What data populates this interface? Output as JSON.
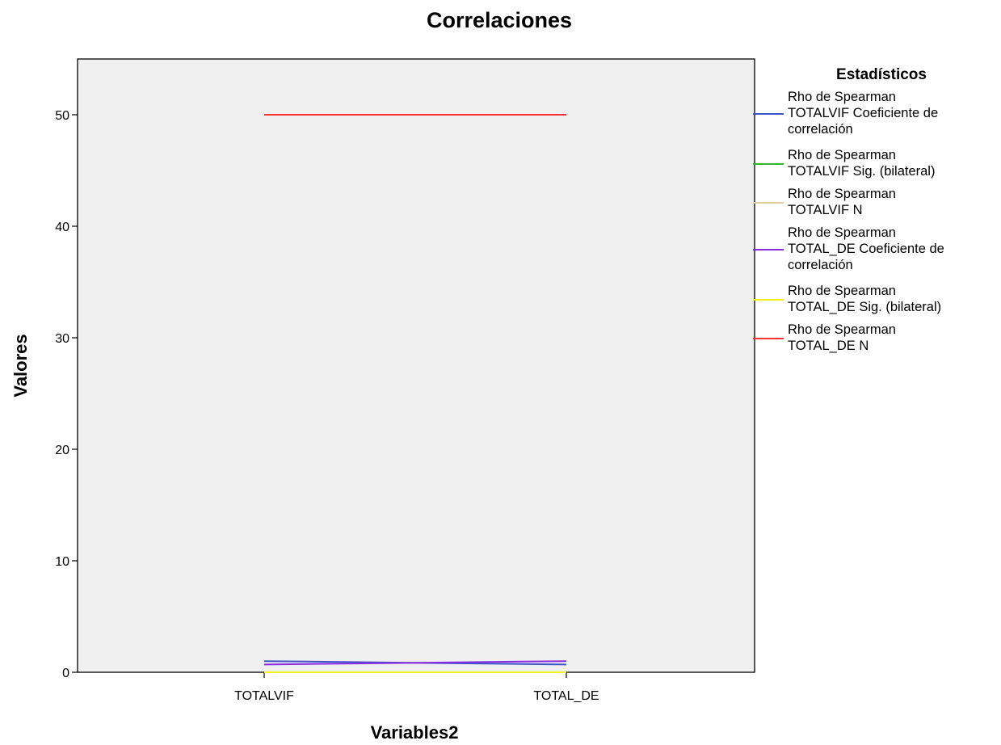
{
  "chart_data": {
    "type": "line",
    "title": "Correlaciones",
    "xlabel": "Variables2",
    "ylabel": "Valores",
    "categories": [
      "TOTALVIF",
      "TOTAL_DE"
    ],
    "ylim": [
      0,
      55
    ],
    "yticks": [
      0,
      10,
      20,
      30,
      40,
      50
    ],
    "grid": false,
    "legend": {
      "title": "Estadísticos",
      "placement": "right"
    },
    "series": [
      {
        "name": "Rho de Spearman TOTALVIF Coeficiente de correlación",
        "label_lines": [
          "Rho de Spearman",
          "TOTALVIF Coeficiente de",
          "correlación"
        ],
        "color": "#3c54c8",
        "values": [
          1.0,
          0.7
        ]
      },
      {
        "name": "Rho de Spearman TOTALVIF Sig. (bilateral)",
        "label_lines": [
          "Rho de Spearman",
          "TOTALVIF Sig. (bilateral)"
        ],
        "color": "#2eb82e",
        "values": [
          0.0,
          0.0
        ]
      },
      {
        "name": "Rho de Spearman TOTALVIF N",
        "label_lines": [
          "Rho de Spearman",
          "TOTALVIF N"
        ],
        "color": "#d9d2a0",
        "values": [
          50,
          50
        ]
      },
      {
        "name": "Rho de Spearman TOTAL_DE Coeficiente de correlación",
        "label_lines": [
          "Rho de Spearman",
          "TOTAL_DE Coeficiente de",
          "correlación"
        ],
        "color": "#8a2be2",
        "values": [
          0.7,
          1.0
        ]
      },
      {
        "name": "Rho de Spearman TOTAL_DE Sig. (bilateral)",
        "label_lines": [
          "Rho de Spearman",
          "TOTAL_DE Sig. (bilateral)"
        ],
        "color": "#f2f21a",
        "values": [
          0.0,
          0.0
        ]
      },
      {
        "name": "Rho de Spearman TOTAL_DE N",
        "label_lines": [
          "Rho de Spearman",
          "TOTAL_DE N"
        ],
        "color": "#ff3333",
        "values": [
          50,
          50
        ]
      }
    ]
  },
  "colors": {
    "plot_background": "#f0f0f0",
    "axis": "#000000"
  }
}
